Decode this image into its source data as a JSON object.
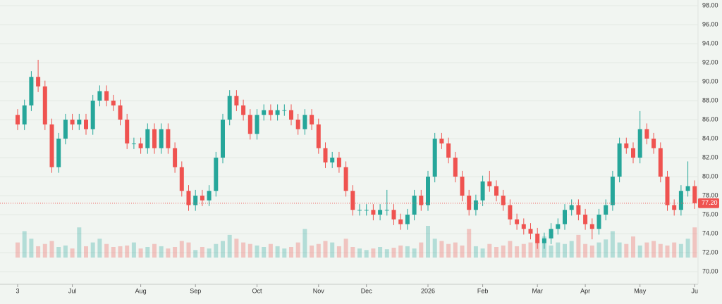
{
  "chart_data": {
    "type": "candlestick",
    "categories": [
      "3",
      null,
      null,
      null,
      null,
      null,
      null,
      null,
      "Jul",
      null,
      null,
      null,
      null,
      null,
      null,
      null,
      null,
      null,
      "Aug",
      null,
      null,
      null,
      null,
      null,
      null,
      null,
      "Sep",
      null,
      null,
      null,
      null,
      null,
      null,
      null,
      null,
      "Oct",
      null,
      null,
      null,
      null,
      null,
      null,
      null,
      null,
      "Nov",
      null,
      null,
      null,
      null,
      null,
      null,
      "Dec",
      null,
      null,
      null,
      null,
      null,
      null,
      null,
      null,
      "2026",
      null,
      null,
      null,
      null,
      null,
      null,
      null,
      "Feb",
      null,
      null,
      null,
      null,
      null,
      null,
      null,
      "Mar",
      null,
      null,
      null,
      null,
      null,
      null,
      "Apr",
      null,
      null,
      null,
      null,
      null,
      null,
      null,
      "May",
      null,
      null,
      null,
      null,
      null,
      null,
      null,
      "Ju"
    ],
    "open": [
      86.5,
      85.5,
      87.5,
      90.5,
      89.5,
      85.5,
      81,
      84,
      86,
      85.5,
      86,
      85,
      88,
      89,
      88,
      87.5,
      86,
      83.5,
      83.5,
      83,
      85,
      83,
      85,
      83,
      81,
      78.5,
      77,
      78,
      77.5,
      78.5,
      82,
      86,
      88.5,
      87.5,
      86.5,
      84.5,
      86.5,
      87,
      86.5,
      87,
      87,
      86,
      85,
      86.5,
      85.5,
      83,
      81.5,
      82,
      81,
      78.5,
      76.5,
      76.5,
      76.5,
      76,
      76.5,
      76.5,
      75.5,
      75,
      76,
      78,
      77,
      80,
      84,
      83.5,
      82,
      80,
      78,
      76.5,
      77.5,
      79.5,
      79,
      78,
      77,
      75.5,
      75,
      74.5,
      74,
      73,
      73.5,
      74.5,
      75,
      76.5,
      77,
      76,
      75,
      74.5,
      76,
      77,
      80,
      83.5,
      83,
      82,
      85,
      84,
      83,
      80,
      77,
      76.5,
      78.5,
      79
    ],
    "high": [
      87.1,
      88.1,
      91.1,
      92.3,
      90.1,
      86.1,
      84.6,
      86.6,
      86.6,
      86.6,
      86.6,
      88.6,
      89.6,
      89.6,
      88.6,
      88.1,
      86.6,
      84.1,
      84.1,
      85.6,
      85.6,
      85.6,
      85.6,
      83.6,
      81.6,
      79.1,
      78.6,
      78.6,
      79.1,
      82.6,
      86.6,
      89.1,
      89.1,
      88.1,
      87.1,
      87.1,
      87.6,
      87.6,
      87.6,
      87.6,
      87.6,
      86.6,
      87.1,
      87.1,
      86.1,
      83.6,
      82.6,
      82.6,
      81.6,
      79.1,
      77.1,
      77.1,
      77.1,
      77.1,
      78.6,
      77.1,
      76.1,
      76.6,
      78.6,
      78.6,
      80.6,
      84.6,
      84.6,
      84.1,
      82.6,
      80.6,
      78.6,
      78.1,
      80.1,
      80.6,
      79.6,
      78.6,
      77.6,
      76.1,
      75.6,
      75.1,
      74.6,
      74.1,
      75.1,
      75.6,
      77.1,
      77.6,
      77.6,
      76.6,
      75.6,
      76.6,
      77.6,
      80.6,
      84.1,
      84.1,
      83.6,
      86.9,
      85.6,
      84.6,
      83.6,
      80.6,
      77.6,
      79.1,
      81.6,
      79.6
    ],
    "low": [
      84.9,
      84.9,
      86.9,
      88.9,
      84.9,
      80.4,
      80.4,
      83.4,
      84.9,
      84.9,
      84.4,
      84.4,
      87.4,
      87.4,
      86.9,
      85.4,
      82.9,
      82.9,
      82.4,
      82.4,
      82.4,
      82.4,
      82.4,
      80.4,
      77.9,
      76.4,
      76.4,
      76.9,
      76.9,
      77.9,
      81.4,
      85.4,
      86.9,
      85.9,
      83.9,
      83.9,
      85.9,
      85.9,
      85.9,
      86.4,
      85.4,
      84.4,
      84.4,
      84.9,
      82.4,
      80.9,
      80.9,
      80.4,
      77.9,
      75.9,
      75.9,
      75.9,
      75.4,
      75.4,
      75.9,
      74.9,
      74.4,
      74.4,
      75.4,
      76.4,
      76.4,
      79.4,
      82.9,
      81.4,
      79.4,
      77.4,
      75.9,
      75.9,
      76.9,
      78.4,
      77.4,
      76.4,
      74.9,
      74.4,
      73.9,
      73.4,
      72.4,
      72.4,
      72.9,
      73.9,
      74.4,
      75.9,
      75.4,
      74.4,
      73.4,
      73.9,
      75.4,
      76.4,
      79.4,
      82.4,
      81.4,
      81.4,
      83.4,
      82.4,
      79.4,
      76.4,
      75.9,
      75.9,
      77.9,
      76.6
    ],
    "close": [
      85.5,
      87.5,
      90.5,
      89.5,
      85.5,
      81,
      84,
      86,
      85.5,
      86,
      85,
      88,
      89,
      88,
      87.5,
      86,
      83.5,
      83.5,
      83,
      85,
      83,
      85,
      83,
      81,
      78.5,
      77,
      78,
      77.5,
      78.5,
      82,
      86,
      88.5,
      87.5,
      86.5,
      84.5,
      86.5,
      87,
      86.5,
      87,
      87,
      86,
      85,
      86.5,
      85.5,
      83,
      81.5,
      82,
      81,
      78.5,
      76.5,
      76.5,
      76.5,
      76,
      76.5,
      76.5,
      75.5,
      75,
      76,
      78,
      77,
      80,
      84,
      83.5,
      82,
      80,
      78,
      76.5,
      77.5,
      79.5,
      79,
      78,
      77,
      75.5,
      75,
      74.5,
      74,
      73,
      73.5,
      74.5,
      75,
      76.5,
      77,
      76,
      75,
      74.5,
      76,
      77,
      80,
      83.5,
      83,
      82,
      85,
      84,
      83,
      80,
      77,
      76.5,
      78.5,
      79,
      77.2
    ],
    "volume": [
      20,
      35,
      25,
      15,
      18,
      22,
      14,
      16,
      12,
      40,
      15,
      20,
      25,
      18,
      14,
      15,
      16,
      20,
      12,
      14,
      18,
      15,
      12,
      14,
      22,
      20,
      10,
      14,
      12,
      18,
      22,
      30,
      25,
      20,
      18,
      16,
      14,
      18,
      15,
      12,
      14,
      20,
      38,
      16,
      18,
      22,
      20,
      15,
      25,
      14,
      12,
      10,
      12,
      14,
      11,
      13,
      16,
      15,
      12,
      20,
      42,
      25,
      22,
      18,
      20,
      16,
      38,
      15,
      12,
      18,
      14,
      16,
      22,
      15,
      18,
      20,
      24,
      28,
      16,
      20,
      18,
      22,
      30,
      18,
      16,
      20,
      24,
      35,
      20,
      18,
      28,
      16,
      20,
      22,
      18,
      16,
      20,
      18,
      25,
      40
    ],
    "up_color": "#26a69a",
    "down_color": "#ef5350",
    "ylim": [
      70,
      98
    ],
    "yticks": [
      {
        "value": 70,
        "label": "70.00"
      },
      {
        "value": 72,
        "label": "72.00"
      },
      {
        "value": 74,
        "label": "74.00"
      },
      {
        "value": 76,
        "label": "76.00"
      },
      {
        "value": 78,
        "label": "78.00"
      },
      {
        "value": 80,
        "label": "80.00"
      },
      {
        "value": 82,
        "label": "82.00"
      },
      {
        "value": 84,
        "label": "84.00"
      },
      {
        "value": 86,
        "label": "86.00"
      },
      {
        "value": 88,
        "label": "88.00"
      },
      {
        "value": 90,
        "label": "90.00"
      },
      {
        "value": 92,
        "label": "92.00"
      },
      {
        "value": 94,
        "label": "94.00"
      },
      {
        "value": 96,
        "label": "96.00"
      },
      {
        "value": 98,
        "label": "98.00"
      }
    ],
    "last_price": {
      "value": 77.2,
      "label": "77.20"
    },
    "grid": true
  }
}
